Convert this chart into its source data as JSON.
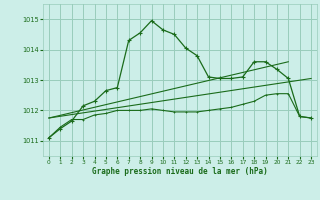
{
  "background_color": "#cceee8",
  "grid_color": "#99ccbb",
  "line_color": "#1a6b1a",
  "title": "Graphe pression niveau de la mer (hPa)",
  "xlim": [
    -0.5,
    23.5
  ],
  "ylim": [
    1010.5,
    1015.5
  ],
  "yticks": [
    1011,
    1012,
    1013,
    1014,
    1015
  ],
  "xticks": [
    0,
    1,
    2,
    3,
    4,
    5,
    6,
    7,
    8,
    9,
    10,
    11,
    12,
    13,
    14,
    15,
    16,
    17,
    18,
    19,
    20,
    21,
    22,
    23
  ],
  "series1_x": [
    0,
    1,
    2,
    3,
    4,
    5,
    6,
    7,
    8,
    9,
    10,
    11,
    12,
    13,
    14,
    15,
    16,
    17,
    18,
    19,
    20,
    21,
    22,
    23
  ],
  "series1_y": [
    1011.1,
    1011.4,
    1011.65,
    1012.15,
    1012.3,
    1012.65,
    1012.75,
    1014.3,
    1014.55,
    1014.95,
    1014.65,
    1014.5,
    1014.05,
    1013.8,
    1013.1,
    1013.05,
    1013.05,
    1013.1,
    1013.6,
    1013.6,
    1013.35,
    1013.05,
    1011.8,
    1011.75
  ],
  "series2_x": [
    0,
    1,
    2,
    3,
    4,
    5,
    6,
    7,
    8,
    9,
    10,
    11,
    12,
    13,
    14,
    15,
    16,
    17,
    18,
    19,
    20,
    21,
    22,
    23
  ],
  "series2_y": [
    1011.1,
    1011.45,
    1011.7,
    1011.7,
    1011.85,
    1011.9,
    1012.0,
    1012.0,
    1012.0,
    1012.05,
    1012.0,
    1011.95,
    1011.95,
    1011.95,
    1012.0,
    1012.05,
    1012.1,
    1012.2,
    1012.3,
    1012.5,
    1012.55,
    1012.55,
    1011.8,
    1011.75
  ],
  "series3_x": [
    0,
    21
  ],
  "series3_y": [
    1011.75,
    1013.6
  ],
  "series4_x": [
    0,
    23
  ],
  "series4_y": [
    1011.75,
    1013.05
  ]
}
